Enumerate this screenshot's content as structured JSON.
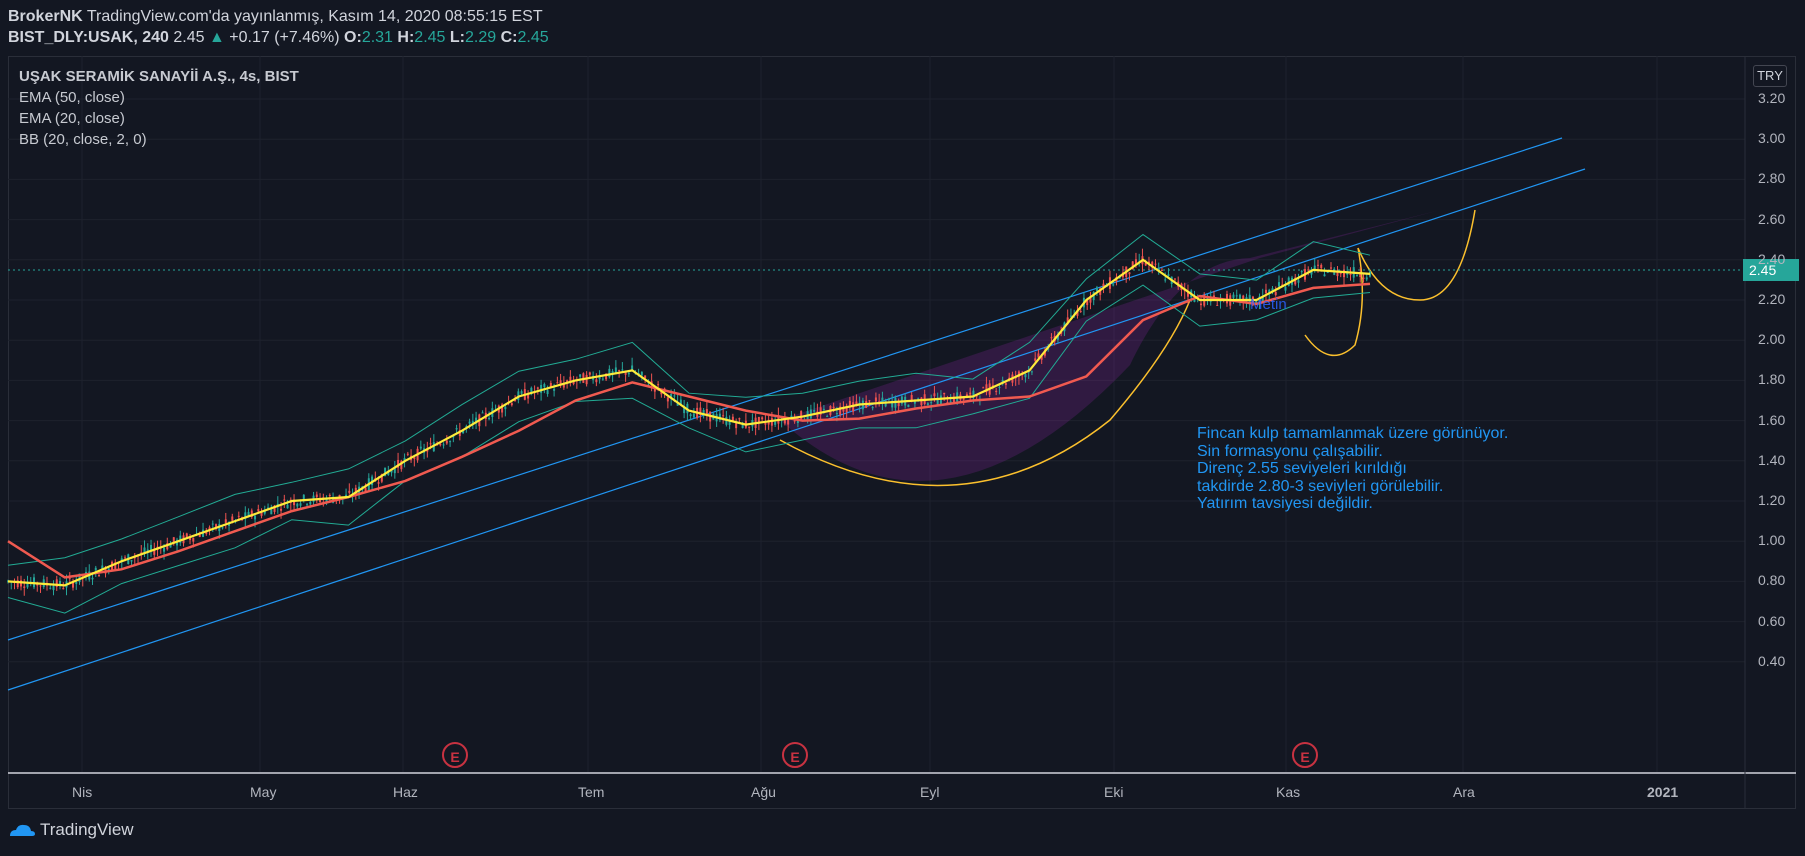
{
  "header": {
    "author": "BrokerNK",
    "published": "TradingView.com'da yayınlanmış, Kasım 14, 2020 08:55:15 EST",
    "symbol": "BIST_DLY:USAK, 240",
    "last": "2.45",
    "change": "+0.17 (+7.46%)",
    "open_label": "O:",
    "open": "2.31",
    "high_label": "H:",
    "high": "2.45",
    "low_label": "L:",
    "low": "2.29",
    "close_label": "C:",
    "close": "2.45"
  },
  "legend": {
    "main": "UŞAK SERAMİK SANAYİİ A.Ş., 4s, BIST",
    "ema50": "EMA (50, close)",
    "ema20": "EMA (20, close)",
    "bb": "BB (20, close, 2, 0)"
  },
  "currency": "TRY",
  "price_badge": "2.45",
  "annotation_note": "Fincan kulp tamamlanmak üzere görünüyor.\nSin formasyonu çalışabilir.\nDirenç 2.55 seviyeleri kırıldığı\ntakdirde 2.80-3 seviyleri görülebilir.\nYatırım tavsiyesi değildir.",
  "annotation_metin": "Metin",
  "earnings_badge": "E",
  "footer_brand": "TradingView",
  "colors": {
    "background": "#131722",
    "up": "#26a69a",
    "down": "#ef5350",
    "ema50": "#f05a50",
    "ema20": "#ffeb3b",
    "bb": "#22ab94",
    "channel": "#2196f3",
    "fill": "#9c27b0"
  },
  "chart_data": {
    "type": "line",
    "y_axis": {
      "min": 0.4,
      "max": 3.2,
      "ticks": [
        "3.20",
        "3.00",
        "2.80",
        "2.60",
        "2.40",
        "2.20",
        "2.00",
        "1.80",
        "1.60",
        "1.40",
        "1.20",
        "1.00",
        "0.80",
        "0.60",
        "0.40"
      ]
    },
    "x_axis": {
      "ticks": [
        "Nis",
        "May",
        "Haz",
        "Tem",
        "Ağu",
        "Eyl",
        "Eki",
        "Kas",
        "Ara",
        "2021"
      ]
    },
    "last_price": 2.45,
    "series": [
      {
        "name": "EMA (50, close)",
        "values": [
          1.0,
          0.82,
          0.86,
          0.95,
          1.05,
          1.15,
          1.22,
          1.3,
          1.42,
          1.55,
          1.7,
          1.79,
          1.72,
          1.65,
          1.6,
          1.61,
          1.66,
          1.7,
          1.72,
          1.82,
          2.1,
          2.22,
          2.18,
          2.26,
          2.28
        ]
      },
      {
        "name": "EMA (20, close)",
        "values": [
          0.8,
          0.78,
          0.9,
          1.0,
          1.1,
          1.2,
          1.22,
          1.4,
          1.55,
          1.72,
          1.8,
          1.85,
          1.65,
          1.58,
          1.62,
          1.68,
          1.7,
          1.72,
          1.85,
          2.2,
          2.4,
          2.2,
          2.2,
          2.35,
          2.33
        ]
      }
    ],
    "earnings_markers": [
      "Haz",
      "Ağu",
      "Kas"
    ]
  }
}
